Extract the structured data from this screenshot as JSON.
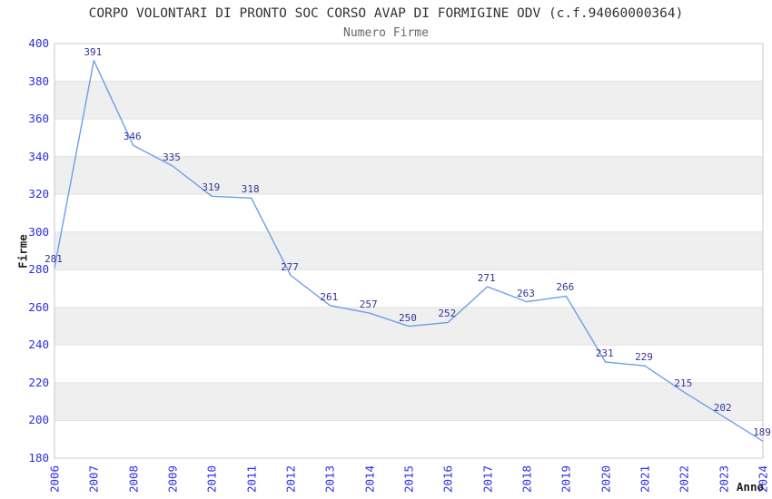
{
  "title": "CORPO VOLONTARI DI PRONTO SOC CORSO AVAP DI FORMIGINE ODV (c.f.94060000364)",
  "subtitle": "Numero Firme",
  "chart_data": {
    "type": "line",
    "title": "CORPO VOLONTARI DI PRONTO SOC CORSO AVAP DI FORMIGINE ODV (c.f.94060000364)",
    "subtitle": "Numero Firme",
    "xlabel": "Anno",
    "ylabel": "Firme",
    "categories": [
      "2006",
      "2007",
      "2008",
      "2009",
      "2010",
      "2011",
      "2012",
      "2013",
      "2014",
      "2015",
      "2016",
      "2017",
      "2018",
      "2019",
      "2020",
      "2021",
      "2022",
      "2023",
      "2024"
    ],
    "series": [
      {
        "name": "Numero Firme",
        "values": [
          281,
          391,
          346,
          335,
          319,
          318,
          277,
          261,
          257,
          250,
          252,
          271,
          263,
          266,
          231,
          229,
          215,
          202,
          189
        ]
      }
    ],
    "data_labels_shown": true,
    "ylim": [
      180,
      400
    ],
    "ytick_step": 20,
    "yticks": [
      180,
      200,
      220,
      240,
      260,
      280,
      300,
      320,
      340,
      360,
      380,
      400
    ],
    "grid": true,
    "legend_position": "none",
    "colors": {
      "line": "#6d9eea",
      "tick_label": "#2d2de0",
      "data_label": "#333399",
      "band": "#efefef",
      "grid_line": "#e2e2e2",
      "plot_border": "#c9c9c9",
      "title_text": "#333333",
      "subtitle_text": "#666666",
      "background": "#ffffff"
    }
  }
}
